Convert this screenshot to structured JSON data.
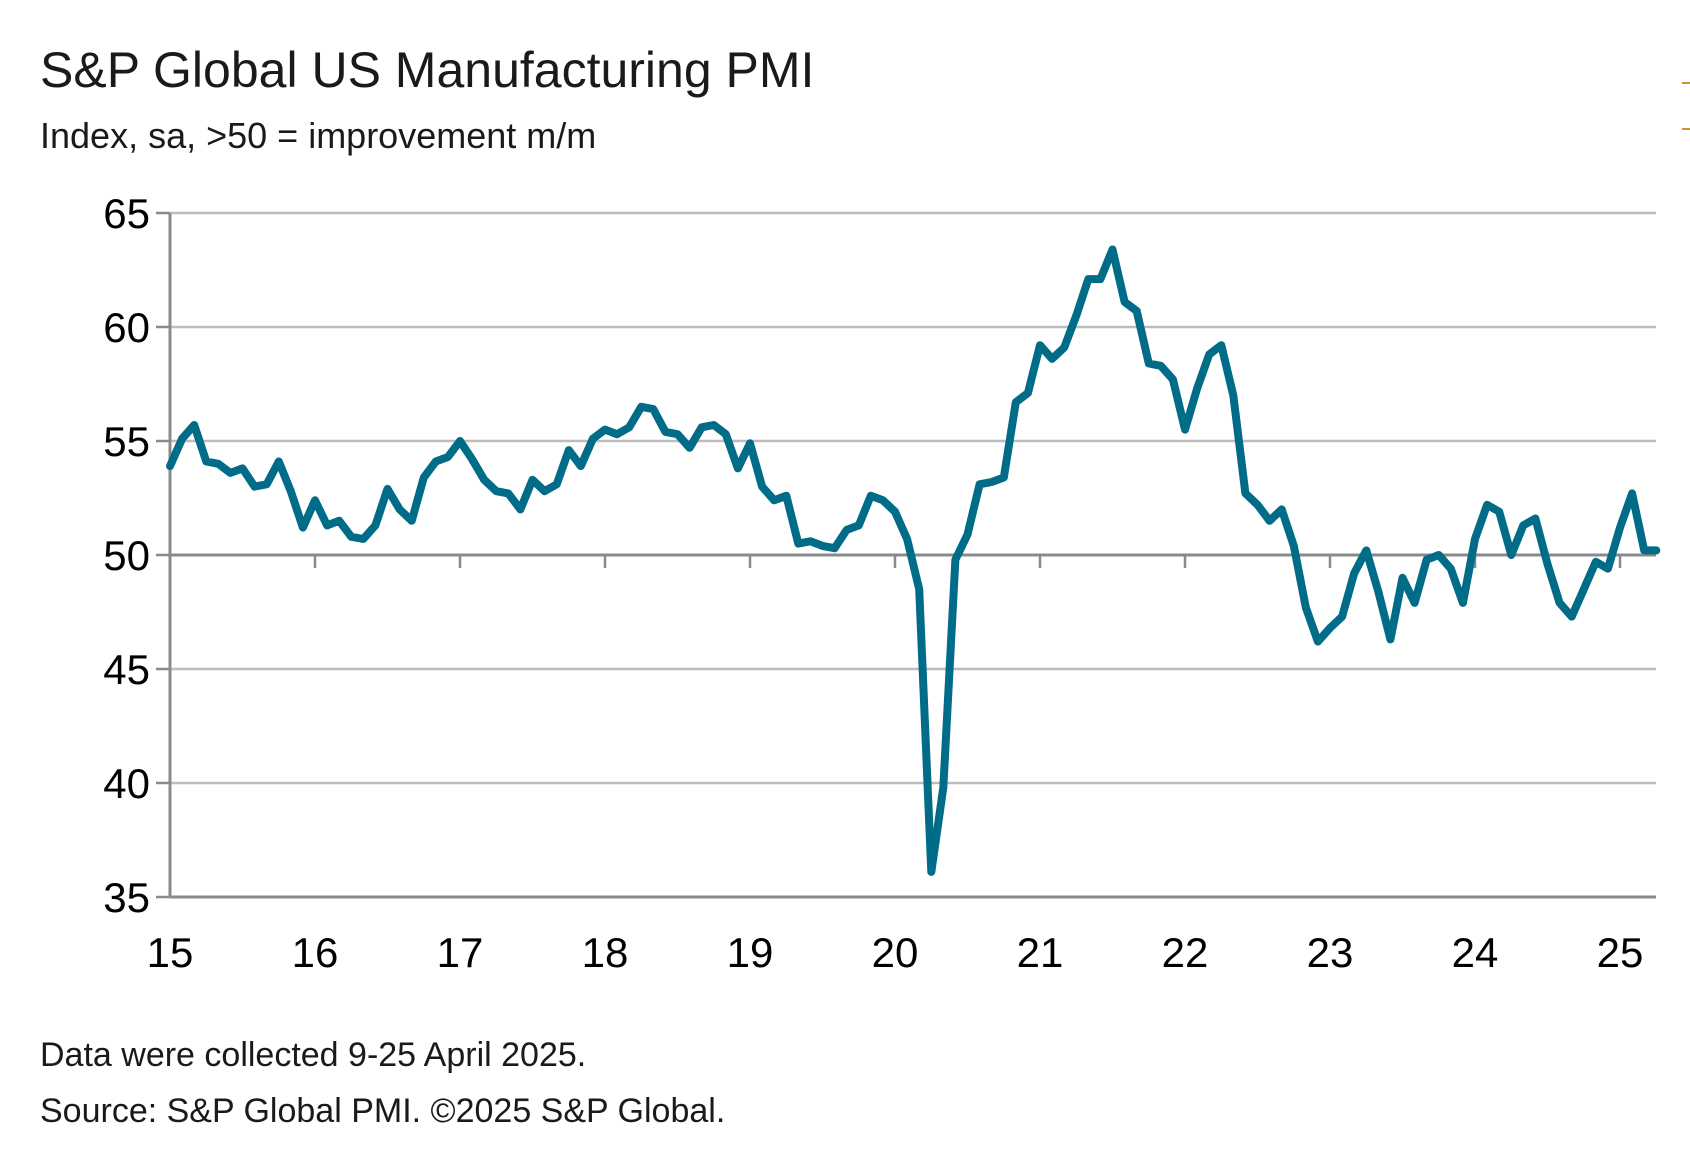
{
  "chart_data": {
    "type": "line",
    "title": "S&P Global US Manufacturing PMI",
    "subtitle": "Index, sa, >50 = improvement m/m",
    "xlabel": "",
    "ylabel": "",
    "ylim": [
      35,
      65
    ],
    "yticks": [
      "65",
      "60",
      "55",
      "50",
      "45",
      "40",
      "35"
    ],
    "xticks": [
      "15",
      "16",
      "17",
      "18",
      "19",
      "20",
      "21",
      "22",
      "23",
      "24",
      "25"
    ],
    "reference_line": 50,
    "grid": true,
    "line_color": "#006C87",
    "series": [
      {
        "start": "2015-01",
        "values": [
          53.9,
          55.1,
          55.7,
          54.1,
          54.0,
          53.6,
          53.8,
          53.0,
          53.1,
          54.1,
          52.8,
          51.2,
          52.4,
          51.3,
          51.5,
          50.8,
          50.7,
          51.3,
          52.9,
          52.0,
          51.5,
          53.4,
          54.1,
          54.3,
          55.0,
          54.2,
          53.3,
          52.8,
          52.7,
          52.0,
          53.3,
          52.8,
          53.1,
          54.6,
          53.9,
          55.1,
          55.5,
          55.3,
          55.6,
          56.5,
          56.4,
          55.4,
          55.3,
          54.7,
          55.6,
          55.7,
          55.3,
          53.8,
          54.9,
          53.0,
          52.4,
          52.6,
          50.5,
          50.6,
          50.4,
          50.3,
          51.1,
          51.3,
          52.6,
          52.4,
          51.9,
          50.7,
          48.5,
          36.1,
          39.8,
          49.8,
          50.9,
          53.1,
          53.2,
          53.4,
          56.7,
          57.1,
          59.2,
          58.6,
          59.1,
          60.5,
          62.1,
          62.1,
          63.4,
          61.1,
          60.7,
          58.4,
          58.3,
          57.7,
          55.5,
          57.3,
          58.8,
          59.2,
          57.0,
          52.7,
          52.2,
          51.5,
          52.0,
          50.4,
          47.7,
          46.2,
          46.8,
          47.3,
          49.2,
          50.2,
          48.4,
          46.3,
          49.0,
          47.9,
          49.8,
          50.0,
          49.4,
          47.9,
          50.7,
          52.2,
          51.9,
          50.0,
          51.3,
          51.6,
          49.6,
          47.9,
          47.3,
          48.5,
          49.7,
          49.4,
          51.2,
          52.7,
          50.2,
          50.2
        ]
      }
    ]
  },
  "footer": {
    "note": "Data were collected 9-25 April 2025.",
    "source": "Source: S&P Global PMI. ©2025 S&P Global."
  },
  "colors": {
    "line": "#006C87",
    "grid": "#BDBDBD",
    "axis": "#8A8A8A",
    "corner_mark": "#C9962D"
  }
}
